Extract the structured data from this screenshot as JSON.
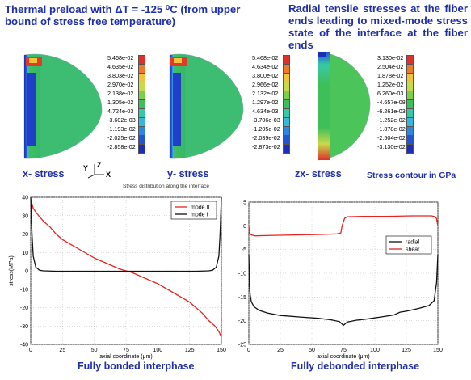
{
  "headings": {
    "left": "Thermal preload with ΔT = -125 ⁰C (from upper bound of stress free temperature)",
    "right": "Radial tensile stresses at the fiber ends leading to mixed-mode stress state of the interface at the fiber ends"
  },
  "contour_panels": [
    {
      "label": "x- stress",
      "legend": [
        "5.468e-02",
        "4.635e-02",
        "3.803e-02",
        "2.970e-02",
        "2.138e-02",
        "1.305e-02",
        "4.724e-03",
        "-3.602e-03",
        "-1.193e-02",
        "-2.025e-02",
        "-2.858e-02"
      ]
    },
    {
      "label": "y- stress",
      "legend": [
        "5.468e-02",
        "4.634e-02",
        "3.800e-02",
        "2.966e-02",
        "2.132e-02",
        "1.297e-02",
        "4.634e-03",
        "-3.706e-03",
        "-1.205e-02",
        "-2.039e-02",
        "-2.873e-02"
      ]
    },
    {
      "label": "zx- stress",
      "legend": [
        "3.130e-02",
        "2.504e-02",
        "1.878e-02",
        "1.252e-02",
        "6.260e-03",
        "-4.657e-08",
        "-6.261e-03",
        "-1.252e-02",
        "-1.878e-02",
        "-2.504e-02",
        "-3.130e-02"
      ]
    }
  ],
  "legend_colors": [
    "#e0302a",
    "#f07a28",
    "#f2c23a",
    "#c8d94a",
    "#7ccf4c",
    "#3fbf5a",
    "#36c9a6",
    "#37b7e0",
    "#2f86e0",
    "#2553d6",
    "#1c2db8"
  ],
  "triad": {
    "y": "Y",
    "z": "Z",
    "x": "X"
  },
  "stress_note": "Stress distribution along the interface",
  "units_note": "Stress contour in GPa",
  "captions": {
    "left": "Fully bonded interphase",
    "right": "Fully debonded interphase"
  },
  "chart_data": [
    {
      "type": "line",
      "xlabel": "axial coordinate (μm)",
      "ylabel": "stress(MPa)",
      "xlim": [
        0,
        150
      ],
      "ylim": [
        -40,
        40
      ],
      "xticks": [
        0,
        25,
        50,
        75,
        100,
        125,
        150
      ],
      "yticks": [
        40,
        30,
        20,
        10,
        0,
        -10,
        -20,
        -30,
        -40
      ],
      "grid": true,
      "legend_position": "top-right",
      "series": [
        {
          "name": "mode II",
          "color": "#e8221c",
          "x": [
            0,
            2,
            5,
            10,
            15,
            20,
            25,
            30,
            40,
            50,
            60,
            70,
            75,
            80,
            90,
            100,
            110,
            120,
            125,
            130,
            135,
            140,
            145,
            148,
            150
          ],
          "y": [
            39,
            34,
            31,
            27,
            24,
            20,
            17,
            15,
            11,
            7,
            4,
            1,
            0,
            -1,
            -4,
            -7,
            -11,
            -15,
            -17,
            -20,
            -23,
            -27,
            -30,
            -33,
            -36
          ]
        },
        {
          "name": "mode I",
          "color": "#111111",
          "x": [
            0,
            1,
            2,
            4,
            7,
            10,
            20,
            50,
            75,
            100,
            130,
            140,
            143,
            146,
            148,
            149,
            150
          ],
          "y": [
            40,
            20,
            8,
            2,
            0.3,
            0,
            -0.2,
            -0.2,
            -0.2,
            -0.2,
            -0.2,
            0,
            0.3,
            2,
            8,
            20,
            40
          ]
        }
      ]
    },
    {
      "type": "line",
      "xlabel": "axial coordinate (μm)",
      "ylabel": "stress(MPa)",
      "xlim": [
        0,
        150
      ],
      "ylim": [
        -25,
        5
      ],
      "xticks": [
        0,
        25,
        50,
        75,
        100,
        125,
        150
      ],
      "yticks": [
        5,
        0,
        -5,
        -10,
        -15,
        -20,
        -25
      ],
      "grid": true,
      "legend_position": "right",
      "series": [
        {
          "name": "radial",
          "color": "#111111",
          "x": [
            0,
            0.5,
            1,
            2,
            4,
            8,
            15,
            25,
            40,
            55,
            65,
            72,
            75,
            78,
            85,
            95,
            105,
            115,
            120,
            125,
            135,
            143,
            147,
            149,
            150
          ],
          "y": [
            -6,
            -12,
            -14.5,
            -16,
            -17,
            -17.8,
            -18.4,
            -18.9,
            -19.2,
            -19.5,
            -19.8,
            -20.2,
            -21,
            -20.3,
            -19.9,
            -19.6,
            -19.2,
            -18.8,
            -18.2,
            -18,
            -17.4,
            -16.8,
            -15.8,
            -12,
            -6
          ]
        },
        {
          "name": "shear",
          "color": "#e8221c",
          "x": [
            0,
            0.5,
            2,
            5,
            20,
            40,
            60,
            70,
            73,
            74,
            76,
            78,
            90,
            110,
            130,
            145,
            148,
            149,
            150
          ],
          "y": [
            0,
            -1.5,
            -1.9,
            -2.1,
            -2.0,
            -1.9,
            -1.8,
            -1.7,
            -1.5,
            0,
            1.6,
            1.9,
            2.0,
            2.0,
            2.1,
            2.1,
            1.9,
            1.5,
            0
          ]
        }
      ]
    }
  ]
}
